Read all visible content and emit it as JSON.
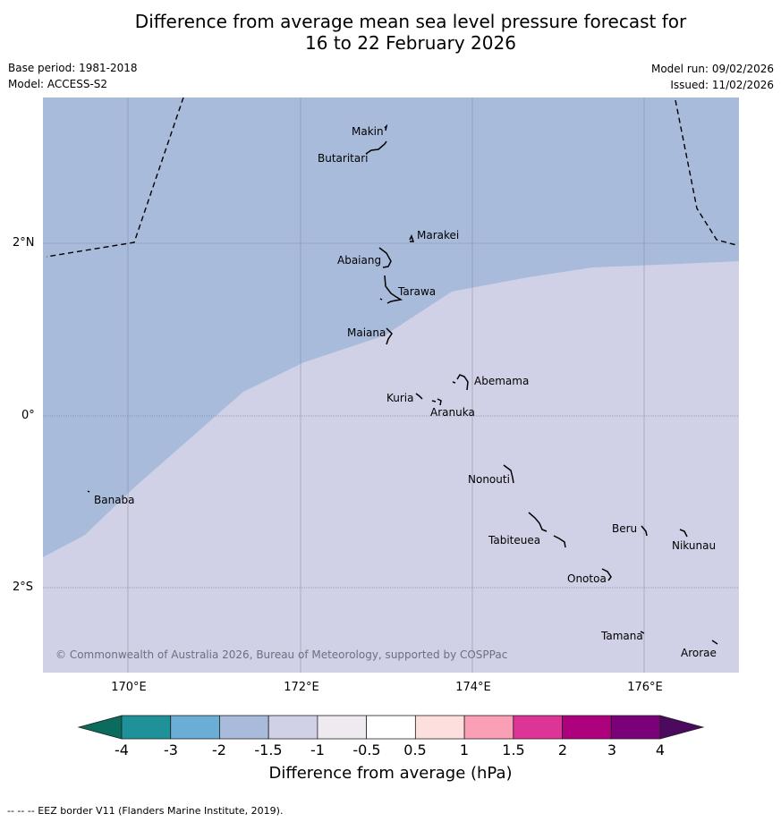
{
  "title_line1": "Difference from average mean sea level pressure forecast for",
  "title_line2": "16 to 22 February 2026",
  "base_period": "Base period: 1981-2018",
  "model": "Model: ACCESS-S2",
  "model_run": "Model run: 09/02/2026",
  "issued": "Issued: 11/02/2026",
  "map": {
    "lat_labels": [
      "2°N",
      "0°",
      "2°S"
    ],
    "lon_labels": [
      "170°E",
      "172°E",
      "174°E",
      "176°E"
    ],
    "copyright": "© Commonwealth of Australia 2026, Bureau of Meteorology, supported by COSPPac",
    "islands": [
      {
        "name": "Makin"
      },
      {
        "name": "Butaritari"
      },
      {
        "name": "Marakei"
      },
      {
        "name": "Abaiang"
      },
      {
        "name": "Tarawa"
      },
      {
        "name": "Maiana"
      },
      {
        "name": "Abemama"
      },
      {
        "name": "Kuria"
      },
      {
        "name": "Aranuka"
      },
      {
        "name": "Banaba"
      },
      {
        "name": "Nonouti"
      },
      {
        "name": "Beru"
      },
      {
        "name": "Tabiteuea"
      },
      {
        "name": "Nikunau"
      },
      {
        "name": "Onotoa"
      },
      {
        "name": "Tamana"
      },
      {
        "name": "Arorae"
      }
    ],
    "regions": [
      {
        "range": "-2 to -1.5",
        "color": "#a8bbdb"
      },
      {
        "range": "-1.5 to -1",
        "color": "#d0d1e6"
      }
    ]
  },
  "colorbar": {
    "title": "Difference from average (hPa)",
    "ticks": [
      "-4",
      "-3",
      "-2",
      "-1.5",
      "-1",
      "-0.5",
      "0.5",
      "1",
      "1.5",
      "2",
      "3",
      "4"
    ],
    "below_color": "#0b6b5c",
    "above_color": "#4b0a5e",
    "colors": [
      "#1f9299",
      "#6aaed6",
      "#a8bbdb",
      "#d0d1e6",
      "#efeaf0",
      "#ffffff",
      "#fde0dd",
      "#fa9fb5",
      "#dd3497",
      "#ae017e",
      "#7a0177"
    ]
  },
  "footnote": "--  --  -- EEZ border V11 (Flanders Marine Institute, 2019)."
}
